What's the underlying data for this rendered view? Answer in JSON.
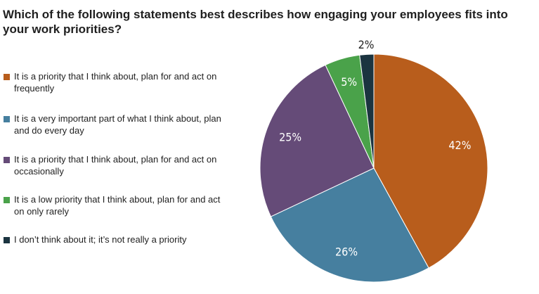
{
  "title": "Which of the following statements best describes how engaging your employees fits into your work priorities?",
  "chart_data": {
    "type": "pie",
    "categories": [
      "It is a priority that I think about, plan for and act on frequently",
      "It is a very important part of what I think about, plan and do every day",
      "It is a priority that I think about, plan for and act on occasionally",
      "It is a low priority that I think about, plan for and act on only rarely",
      "I don’t think about it; it’s not really a priority"
    ],
    "values": [
      42,
      26,
      25,
      5,
      2
    ],
    "value_labels": [
      "42%",
      "26%",
      "25%",
      "5%",
      "2%"
    ],
    "colors": [
      "#b85d1c",
      "#467f9f",
      "#654b78",
      "#4aa24a",
      "#1b3440"
    ],
    "start_angle": "12 o'clock",
    "direction": "clockwise",
    "legend_position": "left"
  }
}
